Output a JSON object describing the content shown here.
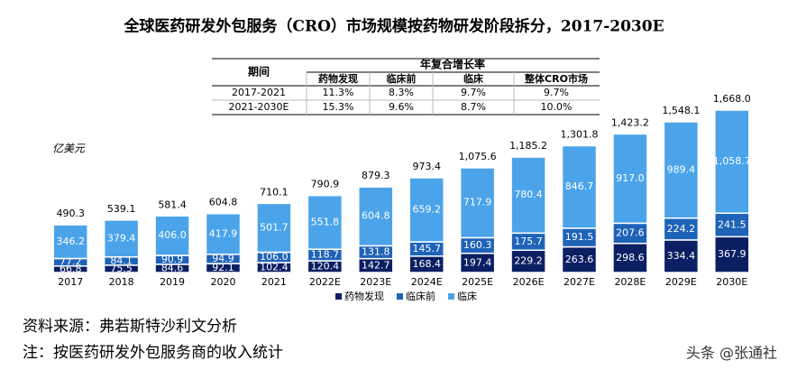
{
  "chart_data": {
    "type": "stacked-bar",
    "title": "全球医药研发外包服务（CRO）市场规模按药物研发阶段拆分，2017-2030E",
    "unit_label": "亿美元",
    "categories": [
      "2017",
      "2018",
      "2019",
      "2020",
      "2021",
      "2022E",
      "2023E",
      "2024E",
      "2025E",
      "2026E",
      "2027E",
      "2028E",
      "2029E",
      "2030E"
    ],
    "series": [
      {
        "name": "药物发现",
        "color": "#0b1f63",
        "values": [
          66.8,
          75.5,
          84.6,
          92.1,
          102.4,
          120.4,
          142.7,
          168.4,
          197.4,
          229.2,
          263.6,
          298.6,
          334.4,
          367.9
        ],
        "value_labels": [
          "66.8",
          "75.5",
          "84.6",
          "92.1",
          "102.4",
          "120.4",
          "142.7",
          "168.4",
          "197.4",
          "229.2",
          "263.6",
          "298.6",
          "334.4",
          "367.9"
        ]
      },
      {
        "name": "临床前",
        "color": "#1e63b8",
        "values": [
          77.2,
          84.1,
          90.9,
          94.9,
          106.0,
          118.7,
          131.8,
          145.7,
          160.3,
          175.7,
          191.5,
          207.6,
          224.2,
          241.5
        ],
        "value_labels": [
          "77.2",
          "84.1",
          "90.9",
          "94.9",
          "106.0",
          "118.7",
          "131.8",
          "145.7",
          "160.3",
          "175.7",
          "191.5",
          "207.6",
          "224.2",
          "241.5"
        ]
      },
      {
        "name": "临床",
        "color": "#4ba4ea",
        "values": [
          346.2,
          379.4,
          406.0,
          417.9,
          501.7,
          551.8,
          604.8,
          659.2,
          717.9,
          780.4,
          846.7,
          917.0,
          989.4,
          1058.7
        ],
        "value_labels": [
          "346.2",
          "379.4",
          "406.0",
          "417.9",
          "501.7",
          "551.8",
          "604.8",
          "659.2",
          "717.9",
          "780.4",
          "846.7",
          "917.0",
          "989.4",
          "1,058.7"
        ]
      }
    ],
    "totals": [
      490.3,
      539.1,
      581.4,
      604.8,
      710.1,
      790.9,
      879.3,
      973.4,
      1075.6,
      1185.2,
      1301.8,
      1423.2,
      1548.1,
      1668.0
    ],
    "total_labels": [
      "490.3",
      "539.1",
      "581.4",
      "604.8",
      "710.1",
      "790.9",
      "879.3",
      "973.4",
      "1,075.6",
      "1,185.2",
      "1,301.8",
      "1,423.2",
      "1,548.1",
      "1,668.0"
    ],
    "table": {
      "col_header": "期间",
      "group_header": "年复合增长率",
      "columns": [
        "药物发现",
        "临床前",
        "临床",
        "整体CRO市场"
      ],
      "rows": [
        [
          "2017-2021",
          "11.3%",
          "8.3%",
          "9.7%",
          "9.7%"
        ],
        [
          "2021-2030E",
          "15.3%",
          "9.6%",
          "8.7%",
          "10.0%"
        ]
      ]
    }
  },
  "notes": {
    "source": "资料来源：弗若斯特沙利文分析",
    "note": "注：按医药研发外包服务商的收入统计",
    "watermark": "头条 @张通社"
  }
}
